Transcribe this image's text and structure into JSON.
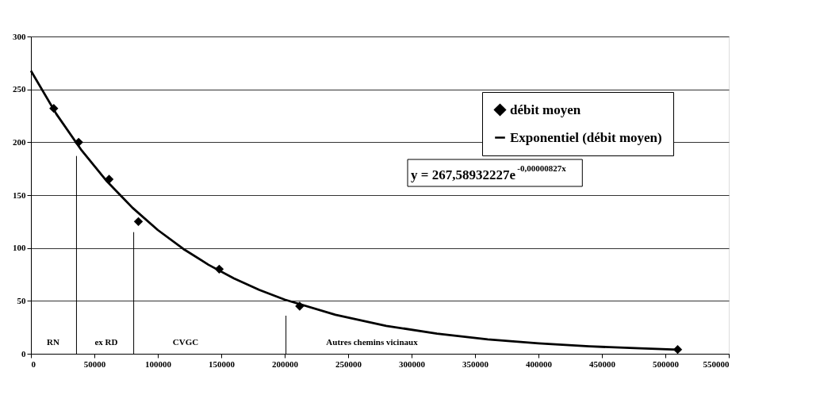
{
  "chart_data": {
    "type": "scatter",
    "xlim": [
      0,
      550000
    ],
    "xticks": [
      0,
      50000,
      100000,
      150000,
      200000,
      250000,
      300000,
      350000,
      400000,
      450000,
      500000,
      550000
    ],
    "ylim": [
      0,
      300
    ],
    "yticks": [
      0,
      50,
      100,
      150,
      200,
      250,
      300
    ],
    "grid": "y",
    "legend": "top right",
    "series": [
      {
        "name": "débit moyen",
        "color": "#000000",
        "marker": "diamond",
        "x": [
          18000,
          37600,
          61600,
          84700,
          148400,
          211800,
          509700
        ],
        "values": [
          232,
          200,
          165,
          125,
          80,
          45,
          4
        ]
      },
      {
        "name": "Exponentiel (débit moyen)",
        "color": "#000000",
        "type": "line",
        "x": [
          0,
          20000,
          40000,
          60000,
          80000,
          100000,
          120000,
          140000,
          160000,
          180000,
          200000,
          240000,
          280000,
          320000,
          360000,
          400000,
          440000,
          480000,
          510000
        ],
        "values": [
          267.6,
          226.8,
          192.2,
          162.9,
          138.1,
          117.0,
          99.2,
          84.1,
          71.3,
          60.4,
          51.2,
          36.8,
          26.4,
          19.0,
          13.6,
          9.8,
          7.0,
          5.1,
          3.9
        ]
      },
      {
        "color": "#000000",
        "type": "line",
        "x": [
          35900,
          35900
        ],
        "values": [
          0,
          187
        ]
      },
      {
        "color": "#000000",
        "type": "line",
        "x": [
          81000,
          81000
        ],
        "values": [
          0,
          115
        ]
      },
      {
        "color": "#000000",
        "type": "line",
        "x": [
          201000,
          201000
        ],
        "values": [
          0,
          36
        ]
      }
    ],
    "annotations": [
      "y = 267,58932227e$^{-0,00000827x}$",
      "RN",
      "ex RD",
      "CVGC",
      "Autres chemins vicinaux"
    ]
  }
}
